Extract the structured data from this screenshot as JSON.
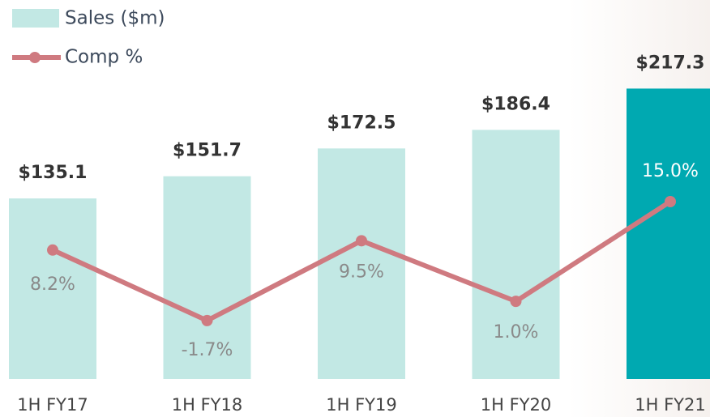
{
  "chart_data": {
    "type": "bar_line",
    "categories": [
      "1H FY17",
      "1H FY18",
      "1H FY19",
      "1H FY20",
      "1H FY21"
    ],
    "ylim": [
      0,
      283.6
    ],
    "y2lim": [
      -9.9,
      43.3
    ],
    "series": [
      {
        "name": "Sales ($m)",
        "type": "bar",
        "color": "#c2e8e4",
        "colors": [
          "#c2e8e4",
          "#c2e8e4",
          "#c2e8e4",
          "#c2e8e4",
          "#00a9b1"
        ],
        "values": [
          135.1,
          151.7,
          172.5,
          186.4,
          217.3
        ],
        "value_labels": [
          "$135.1",
          "$151.7",
          "$172.5",
          "$186.4",
          "$217.3"
        ]
      },
      {
        "name": "Comp %",
        "type": "line",
        "axis": "y2",
        "color": "#cf7a80",
        "values": [
          8.2,
          -1.7,
          9.5,
          1.0,
          15.0
        ],
        "value_labels": [
          "8.2%",
          "-1.7%",
          "9.5%",
          "1.0%",
          "15.0%"
        ]
      }
    ]
  }
}
